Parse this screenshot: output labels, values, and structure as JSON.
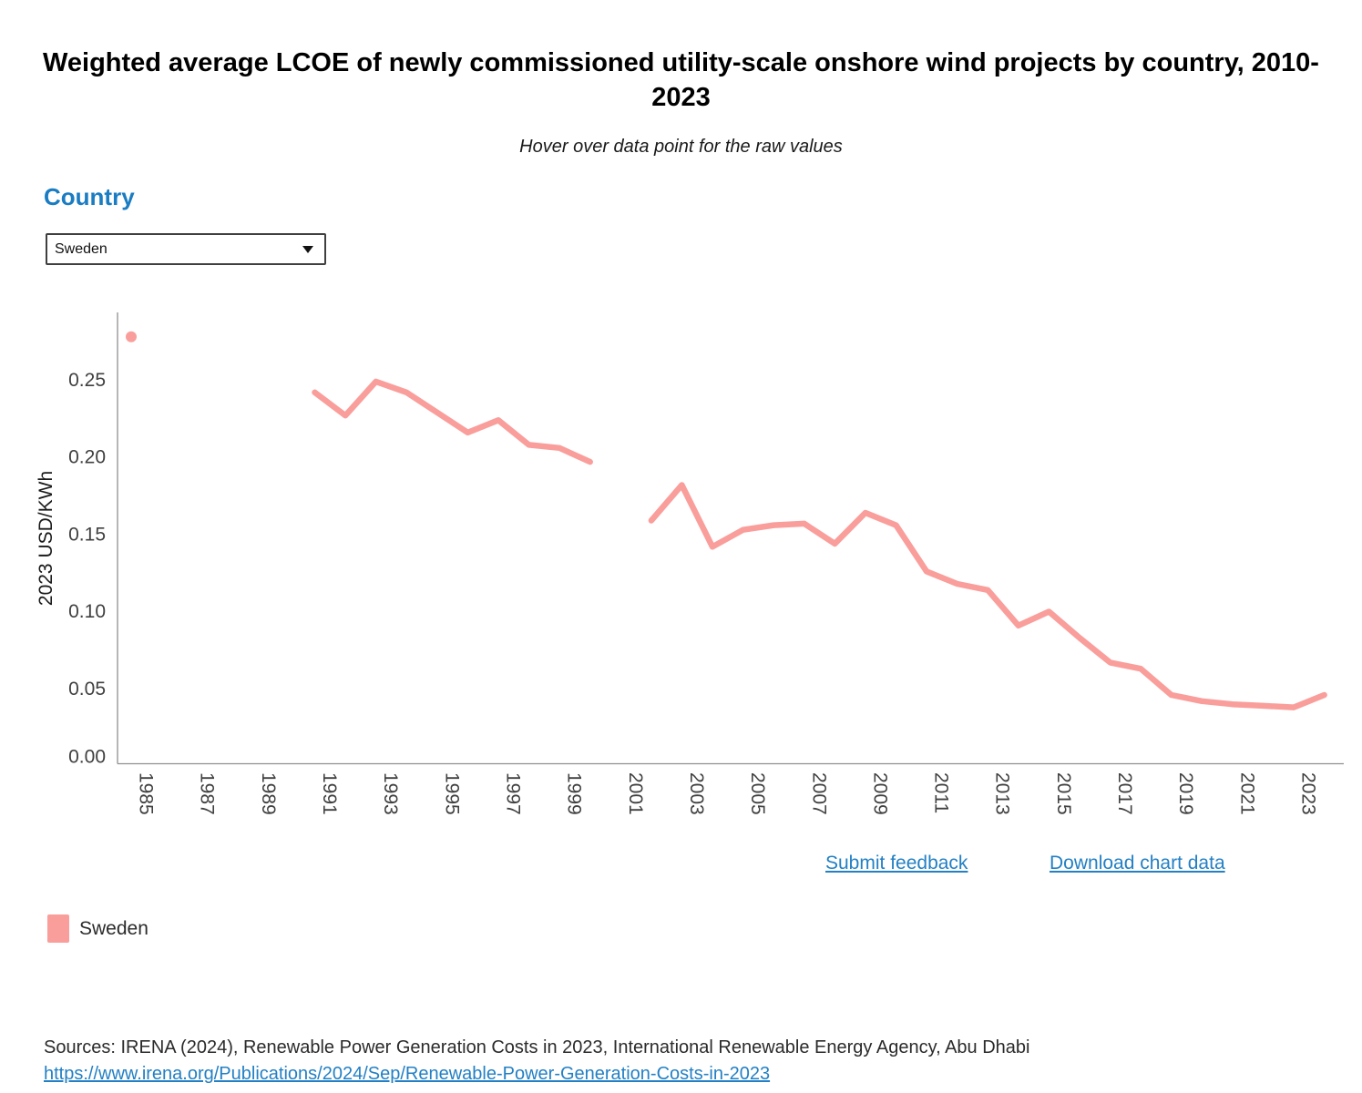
{
  "title": "Weighted average LCOE of newly commissioned utility-scale onshore wind projects by country, 2010-2023",
  "subtitle": "Hover over data point for the raw values",
  "country_selector": {
    "label": "Country",
    "selected": "Sweden"
  },
  "links": {
    "feedback": "Submit feedback",
    "download": "Download chart data"
  },
  "legend": [
    {
      "label": "Sweden",
      "color": "#f99e9b"
    }
  ],
  "sources": {
    "prefix": "Sources: IRENA (2024), Renewable Power Generation Costs in 2023, International Renewable Energy Agency, Abu Dhabi",
    "url": "https://www.irena.org/Publications/2024/Sep/Renewable-Power-Generation-Costs-in-2023"
  },
  "colors": {
    "series": "#f99e9b",
    "heading_blue": "#1a7cc2",
    "link_blue": "#2380c4",
    "axis": "#909090",
    "tick_text": "#404040"
  },
  "chart_data": {
    "type": "line",
    "title": "Weighted average LCOE of newly commissioned utility-scale onshore wind projects by country, 2010-2023",
    "xlabel": "",
    "ylabel": "2023 USD/KWh",
    "ylim": [
      0,
      0.28
    ],
    "xlim": [
      1984,
      2023
    ],
    "grid": false,
    "legend_position": "bottom-left",
    "yticks": [
      0,
      0.05,
      0.1,
      0.15,
      0.2,
      0.25
    ],
    "xticks": [
      1985,
      1987,
      1989,
      1991,
      1993,
      1995,
      1997,
      1999,
      2001,
      2003,
      2005,
      2007,
      2009,
      2011,
      2013,
      2015,
      2017,
      2019,
      2021,
      2023
    ],
    "series": [
      {
        "name": "Sweden",
        "color": "#f99e9b",
        "segments": [
          {
            "style": "point",
            "points": [
              [
                1984,
                0.278
              ]
            ]
          },
          {
            "style": "line",
            "points": [
              [
                1990,
                0.242
              ],
              [
                1991,
                0.227
              ],
              [
                1992,
                0.249
              ],
              [
                1993,
                0.242
              ],
              [
                1995,
                0.216
              ],
              [
                1996,
                0.224
              ],
              [
                1997,
                0.208
              ],
              [
                1998,
                0.206
              ],
              [
                1999,
                0.197
              ]
            ]
          },
          {
            "style": "line",
            "points": [
              [
                2001,
                0.159
              ],
              [
                2002,
                0.182
              ],
              [
                2003,
                0.142
              ],
              [
                2004,
                0.153
              ],
              [
                2005,
                0.156
              ],
              [
                2006,
                0.157
              ],
              [
                2007,
                0.144
              ],
              [
                2008,
                0.164
              ],
              [
                2009,
                0.156
              ],
              [
                2010,
                0.126
              ],
              [
                2011,
                0.118
              ],
              [
                2012,
                0.114
              ],
              [
                2013,
                0.091
              ],
              [
                2014,
                0.1
              ],
              [
                2015,
                0.083
              ],
              [
                2016,
                0.067
              ],
              [
                2017,
                0.063
              ],
              [
                2018,
                0.046
              ],
              [
                2019,
                0.042
              ],
              [
                2020,
                0.04
              ],
              [
                2021,
                0.039
              ],
              [
                2022,
                0.038
              ],
              [
                2023,
                0.046
              ]
            ]
          }
        ],
        "gap_years": [
          1994,
          2000
        ]
      }
    ]
  }
}
